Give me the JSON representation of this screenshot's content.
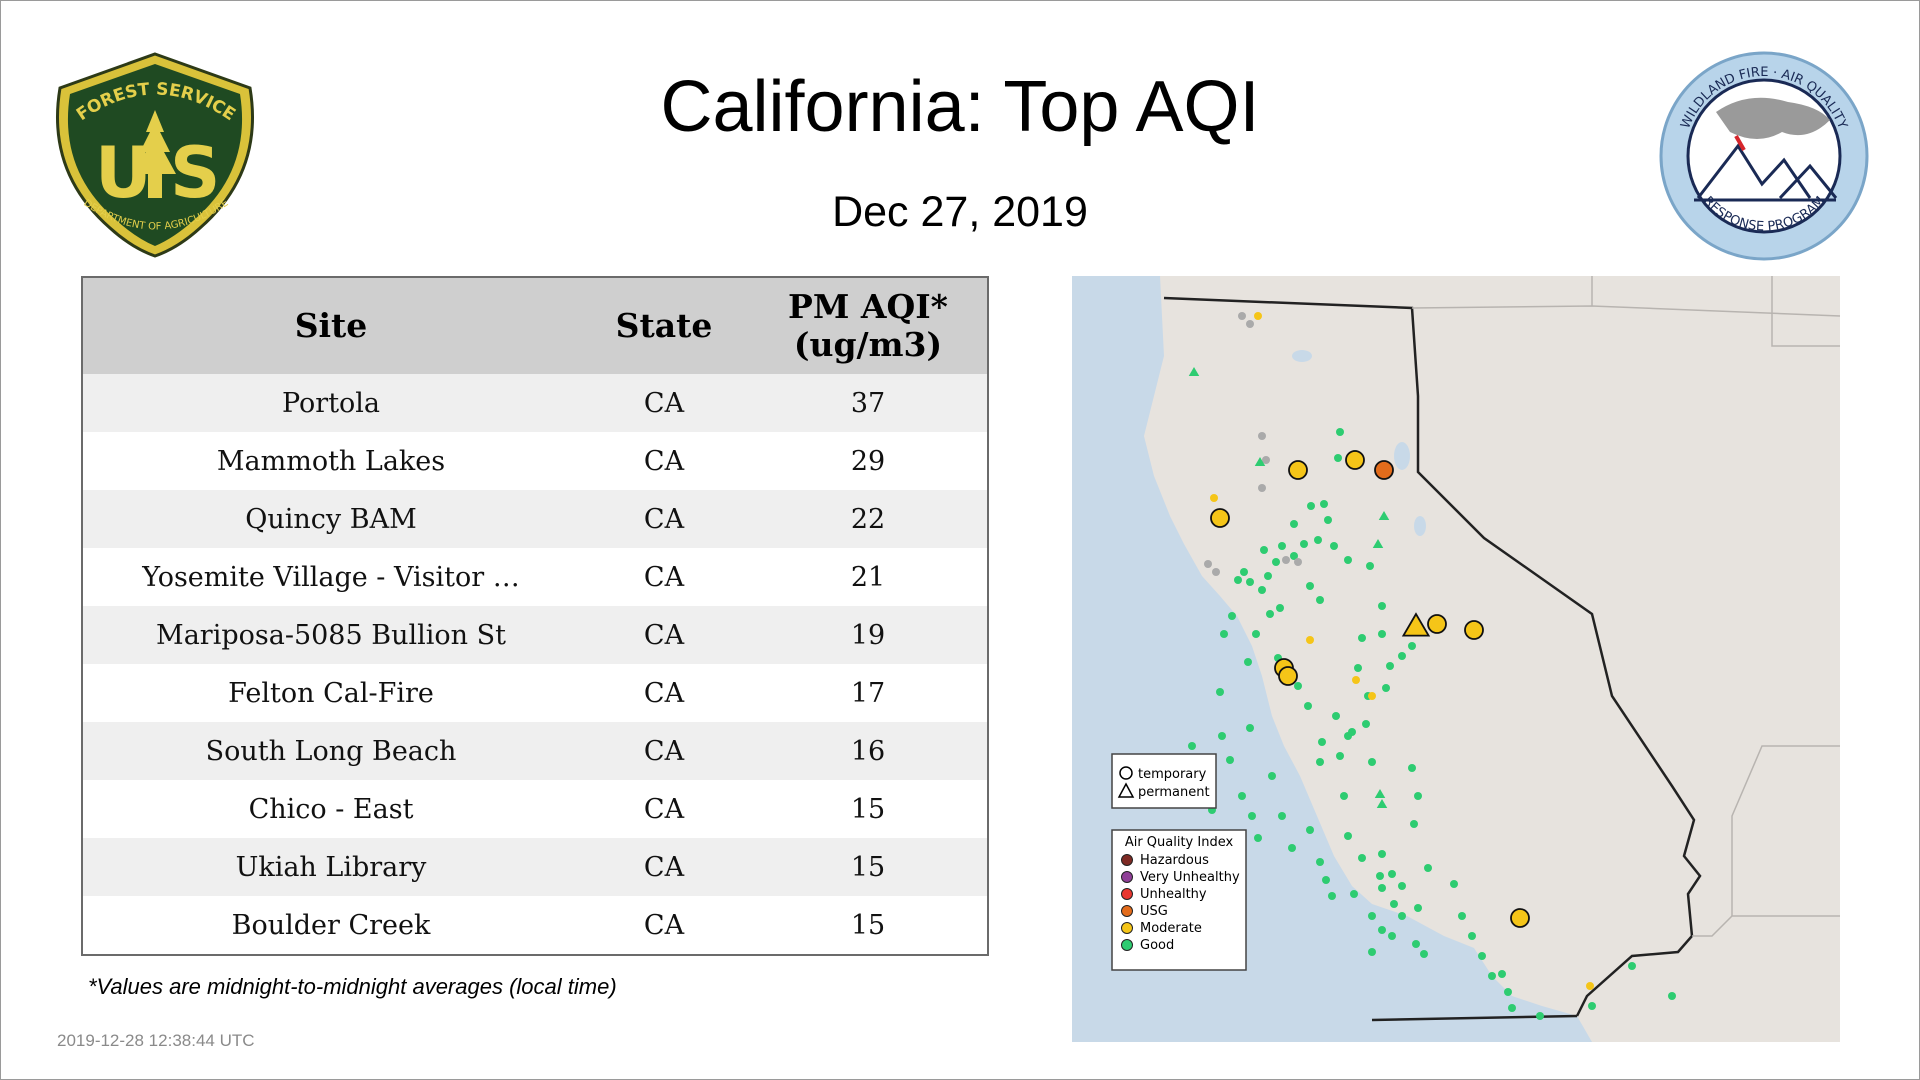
{
  "page": {
    "title": "California: Top AQI",
    "date": "Dec 27, 2019",
    "footnote": "*Values are midnight-to-midnight averages (local time)",
    "generated": "2019-12-28 12:38:44 UTC"
  },
  "logos": {
    "usfs": {
      "top": "FOREST SERVICE",
      "left": "U",
      "right": "S",
      "bottom": "DEPARTMENT OF AGRICULTURE"
    },
    "wfar": {
      "top": "WILDLAND FIRE · AIR QUALITY",
      "bottom": "RESPONSE PROGRAM"
    }
  },
  "table": {
    "headers": {
      "site": "Site",
      "state": "State",
      "value_line1": "PM AQI*",
      "value_line2": "(ug/m3)"
    },
    "rows": [
      {
        "site": "Portola",
        "state": "CA",
        "value": "37"
      },
      {
        "site": "Mammoth Lakes",
        "state": "CA",
        "value": "29"
      },
      {
        "site": "Quincy BAM",
        "state": "CA",
        "value": "22"
      },
      {
        "site": "Yosemite Village - Visitor …",
        "state": "CA",
        "value": "21"
      },
      {
        "site": "Mariposa-5085 Bullion St",
        "state": "CA",
        "value": "19"
      },
      {
        "site": "Felton Cal-Fire",
        "state": "CA",
        "value": "17"
      },
      {
        "site": "South Long Beach",
        "state": "CA",
        "value": "16"
      },
      {
        "site": "Chico - East",
        "state": "CA",
        "value": "15"
      },
      {
        "site": "Ukiah Library",
        "state": "CA",
        "value": "15"
      },
      {
        "site": "Boulder Creek",
        "state": "CA",
        "value": "15"
      }
    ]
  },
  "map": {
    "shape_legend": {
      "temporary": "temporary",
      "permanent": "permanent"
    },
    "aqi_legend": {
      "title": "Air Quality Index",
      "items": [
        {
          "label": "Hazardous",
          "color": "#7e2a24"
        },
        {
          "label": "Very Unhealthy",
          "color": "#8f3f97"
        },
        {
          "label": "Unhealthy",
          "color": "#e8362f"
        },
        {
          "label": "USG",
          "color": "#e36c1b"
        },
        {
          "label": "Moderate",
          "color": "#f5c518"
        },
        {
          "label": "Good",
          "color": "#2ecc71"
        }
      ]
    },
    "colors": {
      "water": "#c8d9e8",
      "land": "#e9e6e3",
      "border": "#222222",
      "good": "#2ecc71",
      "moderate": "#f5c518",
      "usg": "#e36c1b",
      "nodata": "#aaaaaa"
    }
  }
}
